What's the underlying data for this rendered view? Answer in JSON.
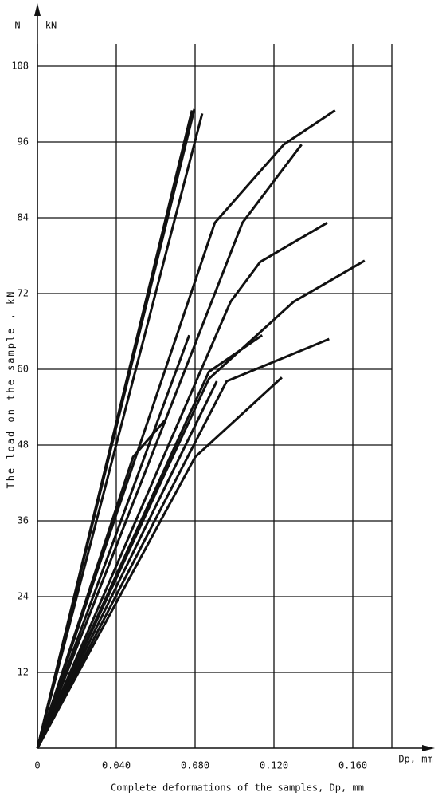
{
  "chart_data": {
    "type": "line",
    "x_label": "Complete deformations of the samples, Dp, mm",
    "y_label": "The load on the sample , kN",
    "y_axis_symbol": "N",
    "y_axis_unit": "kN",
    "x_axis_symbol": "Dp, mm",
    "xlim": [
      0,
      0.18
    ],
    "ylim": [
      0,
      114
    ],
    "xticks": [
      0,
      {
        "value": 0.04,
        "label": "0.040"
      },
      {
        "value": 0.08,
        "label": "0.080"
      },
      {
        "value": 0.12,
        "label": "0.120"
      },
      {
        "value": 0.16,
        "label": "0.160"
      }
    ],
    "yticks": [
      12,
      24,
      36,
      48,
      60,
      72,
      84,
      96,
      108
    ],
    "grid": true,
    "color": "#111111",
    "series": [
      {
        "x": [
          0,
          0.0784
        ],
        "values": [
          0,
          101
        ]
      },
      {
        "x": [
          0,
          0.0796
        ],
        "values": [
          0,
          101.2
        ]
      },
      {
        "x": [
          0,
          0.0836
        ],
        "values": [
          0,
          100.5
        ]
      },
      {
        "x": [
          0,
          0.09,
          0.125,
          0.151
        ],
        "values": [
          0,
          83.2,
          95.6,
          101
        ]
      },
      {
        "x": [
          0,
          0.104,
          0.134
        ],
        "values": [
          0,
          83.2,
          95.6
        ]
      },
      {
        "x": [
          0,
          0.098,
          0.113,
          0.147
        ],
        "values": [
          0,
          70.7,
          77.0,
          83.2
        ]
      },
      {
        "x": [
          0,
          0.087,
          0.13,
          0.166
        ],
        "values": [
          0,
          58.5,
          70.7,
          77.2
        ]
      },
      {
        "x": [
          0,
          0.087,
          0.114
        ],
        "values": [
          0,
          59.6,
          65.4
        ]
      },
      {
        "x": [
          0,
          0.096,
          0.148
        ],
        "values": [
          0,
          58.1,
          64.8
        ]
      },
      {
        "x": [
          0,
          0.08,
          0.124
        ],
        "values": [
          0,
          46.1,
          58.7
        ]
      },
      {
        "x": [
          0,
          0.077
        ],
        "values": [
          0,
          65.4
        ]
      },
      {
        "x": [
          0,
          0.0485,
          0.0646
        ],
        "values": [
          0,
          46.1,
          51.9
        ]
      },
      {
        "x": [
          0,
          0.091
        ],
        "values": [
          0,
          58.1
        ]
      }
    ]
  }
}
